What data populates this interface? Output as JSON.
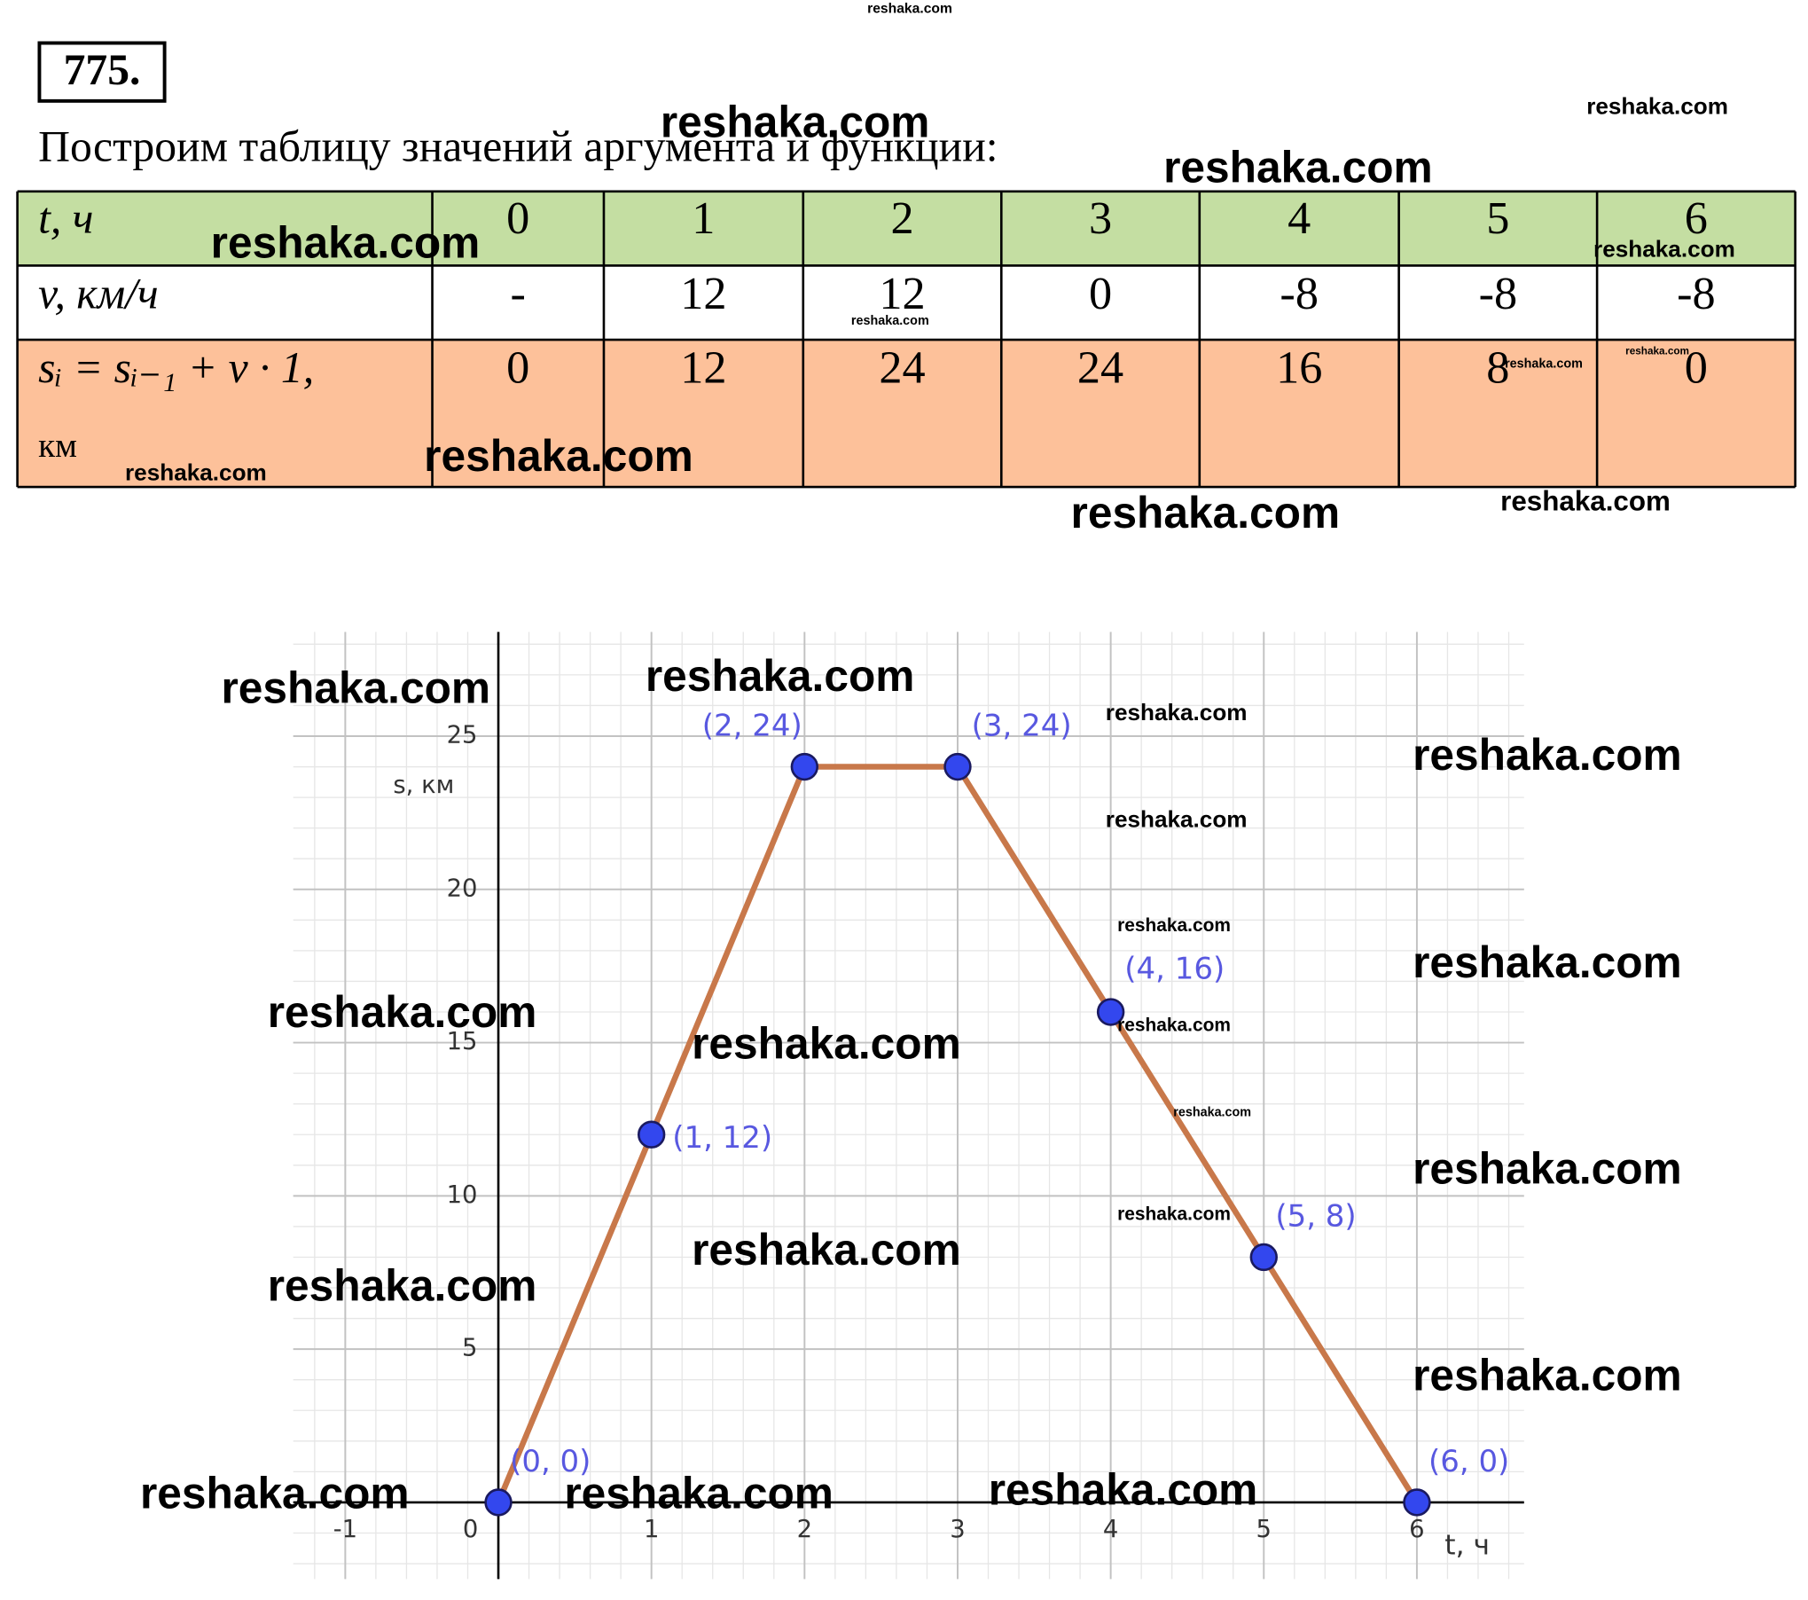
{
  "problem_number": "775.",
  "intro": "Построим таблицу значений аргумента и функции:",
  "table": {
    "rows": [
      {
        "header": [
          "t, ч"
        ],
        "cells": [
          0,
          1,
          2,
          3,
          4,
          5,
          6
        ]
      },
      {
        "header": [
          "v, км/ч"
        ],
        "cells": [
          "-",
          12,
          12,
          0,
          -8,
          -8,
          -8
        ]
      },
      {
        "header": [
          "sᵢ = sᵢ₋₁ + v · 1,",
          "км"
        ],
        "cells": [
          0,
          12,
          24,
          24,
          16,
          8,
          0
        ]
      }
    ]
  },
  "chart_data": {
    "type": "line",
    "x": [
      0,
      1,
      2,
      3,
      4,
      5,
      6
    ],
    "values": [
      0,
      12,
      24,
      24,
      16,
      8,
      0
    ],
    "color": "#c8784a",
    "point_color": "#3347ee",
    "point_labels": [
      "(0, 0)",
      "(1, 12)",
      "(2, 24)",
      "(3, 24)",
      "(4, 16)",
      "(5, 8)",
      "(6, 0)"
    ],
    "xlabel": "t, ч",
    "ylabel": "s, км",
    "xlim": [
      -1.34,
      6.7
    ],
    "ylim": [
      -2.5,
      28.4
    ],
    "xticks": [
      -1,
      0,
      1,
      2,
      3,
      4,
      5,
      6
    ],
    "yticks": [
      5,
      10,
      15,
      20,
      25
    ],
    "grid": true,
    "minor_grid": {
      "x": 0.2,
      "y": 1
    }
  },
  "watermarks": [
    "reshaka.com",
    "reshaka.com",
    "reshaka.com",
    "reshaka.com",
    "reshaka.com",
    "reshaka.com",
    "reshaka.com",
    "reshaka.com",
    "reshaka.com",
    "reshaka.com",
    "reshaka.com",
    "reshaka.com",
    "reshaka.com",
    "reshaka.com",
    "reshaka.com",
    "reshaka.com",
    "reshaka.com",
    "reshaka.com",
    "reshaka.com",
    "reshaka.com",
    "reshaka.com",
    "reshaka.com",
    "reshaka.com",
    "reshaka.com",
    "reshaka.com",
    "reshaka.com",
    "reshaka.com",
    "reshaka.com",
    "reshaka.com",
    "reshaka.com",
    "reshaka.com",
    "reshaka.com"
  ]
}
